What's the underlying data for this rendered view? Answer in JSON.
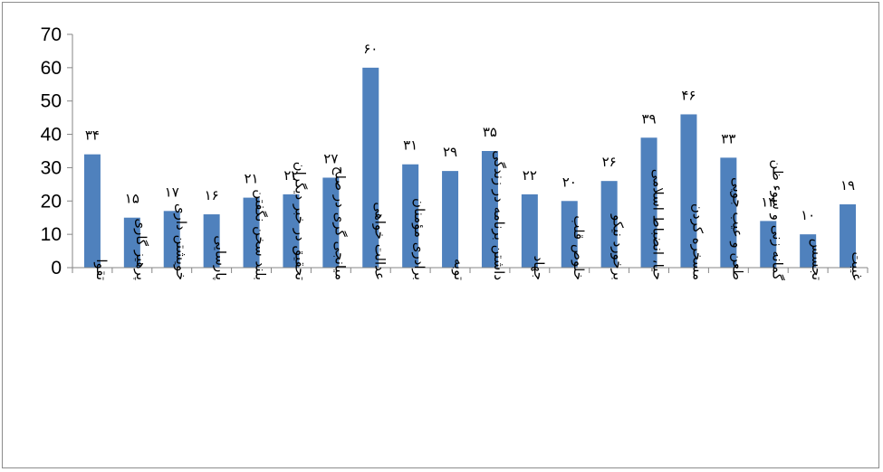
{
  "chart_data": {
    "type": "bar",
    "title": "",
    "xlabel": "",
    "ylabel": "",
    "ylim": [
      0,
      70
    ],
    "yticks": [
      "0",
      "10",
      "20",
      "30",
      "40",
      "50",
      "60",
      "70"
    ],
    "grid": false,
    "legend": "none",
    "bar_color": "#4f81bd",
    "categories": [
      "تقوا",
      "پرهیز گاری",
      "خویشتن داری",
      "پارسایی",
      "بلند سخن نگفتن",
      "تحقیق در خبر دیگران",
      "میانجی گری در صلح",
      "عدالت خواهی",
      "برادری مؤمنان",
      "توبه",
      "داشتن برنامه در زندگی",
      "جهاد",
      "خلوص قلب",
      "برخورد نیکو",
      "حیا، انضباط اسلامی",
      "مسخره کردن",
      "طعن و عیب جویی",
      "گمانه زنی و سوء ظن",
      "تجسس",
      "غیبت"
    ],
    "values": [
      34,
      15,
      17,
      16,
      21,
      22,
      27,
      60,
      31,
      29,
      35,
      22,
      20,
      26,
      39,
      46,
      33,
      14,
      10,
      19
    ],
    "data_labels": [
      "۳۴",
      "۱۵",
      "۱۷",
      "۱۶",
      "۲۱",
      "۲۲",
      "۲۷",
      "۶۰",
      "۳۱",
      "۲۹",
      "۳۵",
      "۲۲",
      "۲۰",
      "۲۶",
      "۳۹",
      "۴۶",
      "۳۳",
      "۱۴",
      "۱۰",
      "۱۹"
    ]
  }
}
